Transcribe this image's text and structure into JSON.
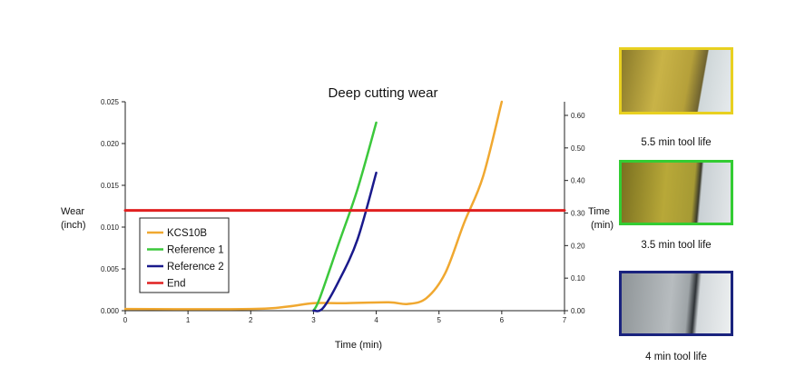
{
  "chart_data": {
    "type": "line",
    "title": "Deep cutting wear",
    "xlabel": "Time (min)",
    "ylabel": [
      "Wear",
      "(inch)"
    ],
    "y2label": [
      "Time",
      "(min)"
    ],
    "xlim": [
      0,
      7
    ],
    "ylim": [
      0,
      0.025
    ],
    "y2lim": [
      0,
      0.6
    ],
    "x_ticks": [
      "0",
      "1",
      "2",
      "3",
      "4",
      "5",
      "6",
      "7"
    ],
    "y_ticks": [
      "0.000",
      "0.005",
      "0.010",
      "0.015",
      "0.020",
      "0.025"
    ],
    "y2_ticks": [
      "0.00",
      "0.10",
      "0.20",
      "0.30",
      "0.40",
      "0.50",
      "0.60"
    ],
    "series": [
      {
        "name": "KCS10B",
        "color": "#f0a830",
        "points": [
          [
            0,
            0.0002
          ],
          [
            2,
            0.0002
          ],
          [
            2.6,
            0.0005
          ],
          [
            3,
            0.0009
          ],
          [
            3.5,
            0.0009
          ],
          [
            4.2,
            0.001
          ],
          [
            4.5,
            0.0008
          ],
          [
            4.8,
            0.0015
          ],
          [
            5.1,
            0.0045
          ],
          [
            5.4,
            0.0105
          ],
          [
            5.7,
            0.016
          ],
          [
            6,
            0.025
          ]
        ]
      },
      {
        "name": "Reference 1",
        "color": "#3cc83c",
        "points": [
          [
            3,
            0
          ],
          [
            3.1,
            0.0015
          ],
          [
            3.4,
            0.008
          ],
          [
            3.7,
            0.0145
          ],
          [
            4.0,
            0.0225
          ]
        ]
      },
      {
        "name": "Reference 2",
        "color": "#1a1a8c",
        "points": [
          [
            3,
            0
          ],
          [
            3.15,
            0.0003
          ],
          [
            3.4,
            0.0035
          ],
          [
            3.7,
            0.0085
          ],
          [
            4.0,
            0.0165
          ]
        ]
      },
      {
        "name": "End",
        "color": "#e02020",
        "points": [
          [
            0,
            0.012
          ],
          [
            7,
            0.012
          ]
        ]
      }
    ]
  },
  "tool_images": [
    {
      "caption": "5.5 min tool life",
      "border_color": "#e8d020"
    },
    {
      "caption": "3.5 min tool life",
      "border_color": "#33cc33"
    },
    {
      "caption": "4 min tool life",
      "border_color": "#1a237e"
    }
  ]
}
